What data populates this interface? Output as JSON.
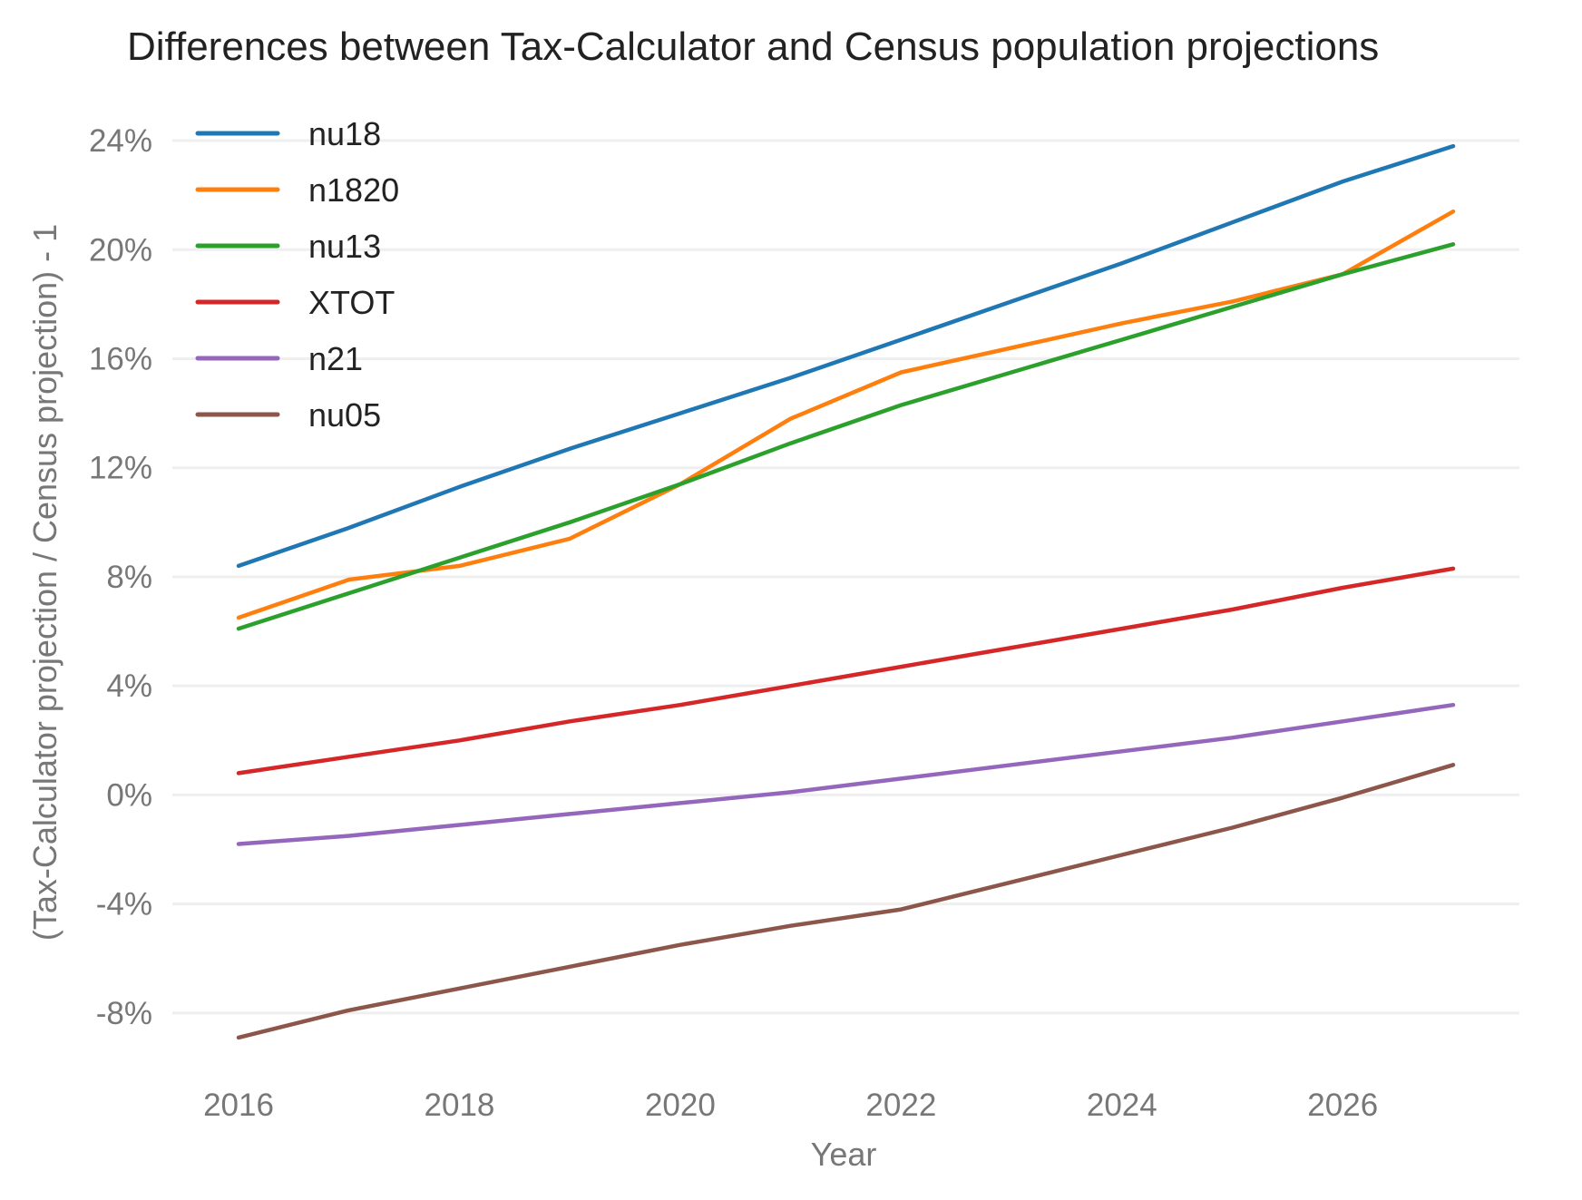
{
  "chart_data": {
    "type": "line",
    "title": "Differences between Tax-Calculator and Census population projections",
    "xlabel": "Year",
    "ylabel": "(Tax-Calculator projection / Census projection) - 1",
    "x": [
      2016,
      2017,
      2018,
      2019,
      2020,
      2021,
      2022,
      2023,
      2024,
      2025,
      2026,
      2027
    ],
    "xlim": [
      2015.4,
      2027.6
    ],
    "ylim": [
      -10.6,
      25.0
    ],
    "x_ticks": [
      2016,
      2018,
      2020,
      2022,
      2024,
      2026
    ],
    "x_tick_labels": [
      "2016",
      "2018",
      "2020",
      "2022",
      "2024",
      "2026"
    ],
    "y_ticks": [
      -8,
      -4,
      0,
      4,
      8,
      12,
      16,
      20,
      24
    ],
    "y_tick_labels": [
      "-8%",
      "-4%",
      "0%",
      "4%",
      "8%",
      "12%",
      "16%",
      "20%",
      "24%"
    ],
    "grid": true,
    "legend_position": "top-left",
    "series": [
      {
        "name": "nu18",
        "color": "#1f77b4",
        "values": [
          8.4,
          9.8,
          11.3,
          12.7,
          14.0,
          15.3,
          16.7,
          18.1,
          19.5,
          21.0,
          22.5,
          23.8
        ]
      },
      {
        "name": "n1820",
        "color": "#ff7f0e",
        "values": [
          6.5,
          7.9,
          8.4,
          9.4,
          11.4,
          13.8,
          15.5,
          16.4,
          17.3,
          18.1,
          19.1,
          21.4
        ]
      },
      {
        "name": "nu13",
        "color": "#2ca02c",
        "values": [
          6.1,
          7.4,
          8.7,
          10.0,
          11.4,
          12.9,
          14.3,
          15.5,
          16.7,
          17.9,
          19.1,
          20.2
        ]
      },
      {
        "name": "XTOT",
        "color": "#d62728",
        "values": [
          0.8,
          1.4,
          2.0,
          2.7,
          3.3,
          4.0,
          4.7,
          5.4,
          6.1,
          6.8,
          7.6,
          8.3
        ]
      },
      {
        "name": "n21",
        "color": "#9467bd",
        "values": [
          -1.8,
          -1.5,
          -1.1,
          -0.7,
          -0.3,
          0.1,
          0.6,
          1.1,
          1.6,
          2.1,
          2.7,
          3.3
        ]
      },
      {
        "name": "nu05",
        "color": "#8c564b",
        "values": [
          -8.9,
          -7.9,
          -7.1,
          -6.3,
          -5.5,
          -4.8,
          -4.2,
          -3.2,
          -2.2,
          -1.2,
          -0.1,
          1.1
        ]
      }
    ]
  }
}
